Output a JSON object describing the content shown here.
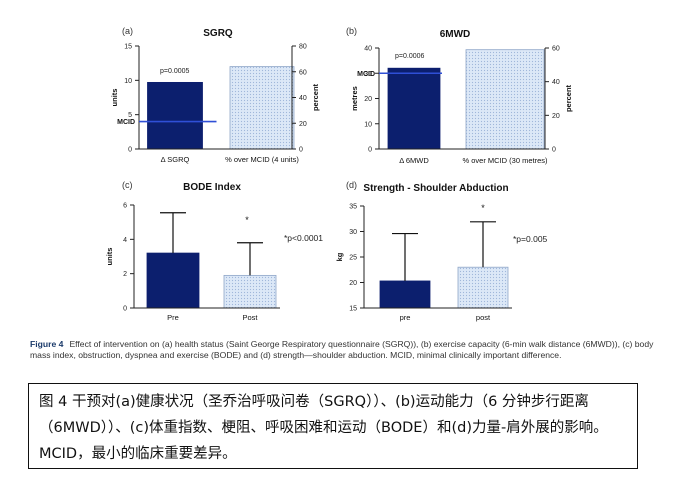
{
  "chart_data": [
    {
      "panel": "(a)",
      "title": "SGRQ",
      "type": "bar",
      "categories": [
        "Δ SGRQ",
        "% over MCID (4 units)"
      ],
      "values": [
        9.7,
        64
      ],
      "value_axis": [
        "left",
        "right"
      ],
      "left_axis": {
        "label": "units",
        "ylim": [
          0,
          15
        ],
        "ticks": [
          "0",
          "5",
          "10",
          "15"
        ]
      },
      "right_axis": {
        "label": "percent",
        "ylim": [
          0,
          80
        ],
        "ticks": [
          "0",
          "20",
          "40",
          "60",
          "80"
        ]
      },
      "mcid": {
        "label": "MCID",
        "value": 4
      },
      "annotation": "p=0.0005",
      "bar_styles": [
        "solid",
        "dotted"
      ]
    },
    {
      "panel": "(b)",
      "title": "6MWD",
      "type": "bar",
      "categories": [
        "Δ 6MWD",
        "% over MCID (30 metres)"
      ],
      "values": [
        32,
        59
      ],
      "value_axis": [
        "left",
        "right"
      ],
      "left_axis": {
        "label": "metres",
        "ylim": [
          0,
          40
        ],
        "ticks": [
          "0",
          "10",
          "20",
          "30",
          "40"
        ]
      },
      "right_axis": {
        "label": "percent",
        "ylim": [
          0,
          60
        ],
        "ticks": [
          "0",
          "20",
          "40",
          "60"
        ]
      },
      "mcid": {
        "label": "MCID",
        "value": 30
      },
      "annotation": "p=0.0006",
      "bar_styles": [
        "solid",
        "dotted"
      ]
    },
    {
      "panel": "(c)",
      "title": "BODE Index",
      "type": "bar",
      "categories": [
        "Pre",
        "Post"
      ],
      "values": [
        3.2,
        1.9
      ],
      "errors": [
        2.35,
        1.9
      ],
      "left_axis": {
        "label": "units",
        "ylim": [
          0,
          6
        ],
        "ticks": [
          "0",
          "2",
          "4",
          "6"
        ]
      },
      "star": "*",
      "annotation": "*p<0.0001",
      "bar_styles": [
        "solid",
        "dotted"
      ]
    },
    {
      "panel": "(d)",
      "title": "Strength - Shoulder Abduction",
      "type": "bar",
      "categories": [
        "pre",
        "post"
      ],
      "values": [
        20.3,
        23
      ],
      "errors": [
        9.3,
        8.9
      ],
      "left_axis": {
        "label": "kg",
        "ylim": [
          15,
          35
        ],
        "ticks": [
          "15",
          "20",
          "25",
          "30",
          "35"
        ]
      },
      "star": "*",
      "annotation": "*p=0.005",
      "bar_styles": [
        "solid",
        "dotted"
      ]
    }
  ],
  "caption": {
    "label": "Figure 4",
    "text": "Effect of intervention on (a) health status (Saint George Respiratory questionnaire (SGRQ)), (b) exercise capacity (6-min walk distance (6MWD)), (c) body mass index, obstruction, dyspnea and exercise (BODE) and (d) strength—shoulder abduction. MCID, minimal clinically important difference."
  },
  "cn_caption": "图 4 干预对(a)健康状况（圣乔治呼吸问卷（SGRQ））、(b)运动能力（6 分钟步行距离（6MWD））、(c)体重指数、梗阻、呼吸困难和运动（BODE）和(d)力量-肩外展的影响。MCID，最小的临床重要差异。",
  "colors": {
    "solid_bar": "#0c1f6e",
    "dotted_bar": "#dce8f7",
    "dot": "#9fb6da",
    "mcid_line": "#2f4fd6",
    "axis": "#222222"
  }
}
